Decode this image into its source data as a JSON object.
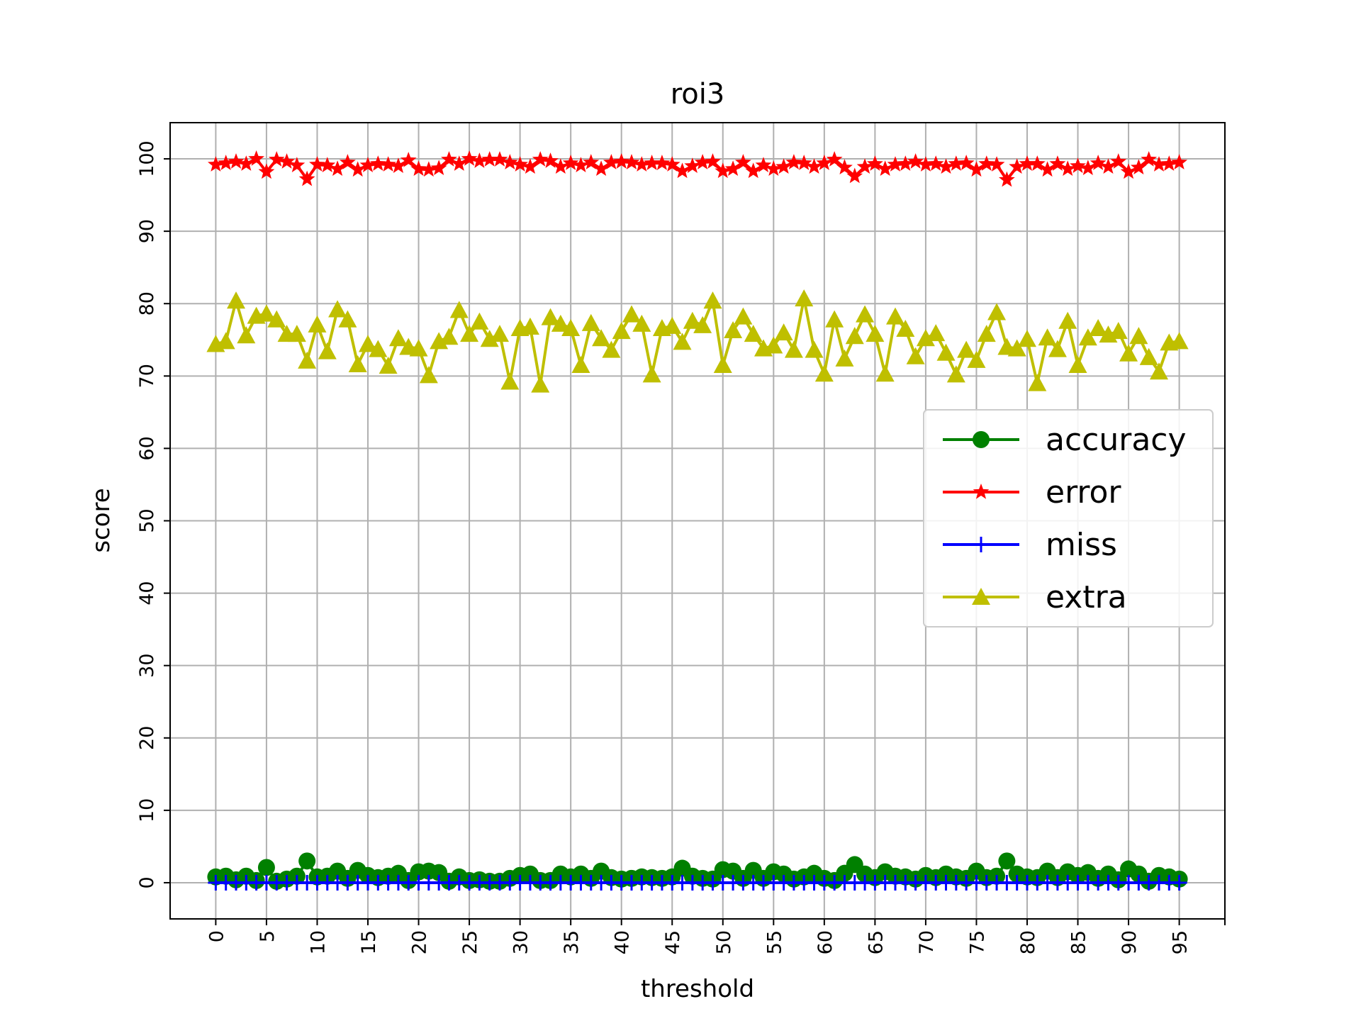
{
  "chart_data": {
    "type": "line",
    "title": "roi3",
    "xlabel": "threshold",
    "ylabel": "score",
    "xlim": [
      -4.5,
      99.5
    ],
    "ylim": [
      -5,
      105
    ],
    "xticks": [
      0,
      5,
      10,
      15,
      20,
      25,
      30,
      35,
      40,
      45,
      50,
      55,
      60,
      65,
      70,
      75,
      80,
      85,
      90,
      95
    ],
    "xtick_labels": [
      "0",
      "5",
      "10",
      "15",
      "20",
      "25",
      "30",
      "35",
      "40",
      "45",
      "50",
      "55",
      "60",
      "65",
      "70",
      "75",
      "80",
      "85",
      "90",
      "95"
    ],
    "yticks": [
      0,
      10,
      20,
      30,
      40,
      50,
      60,
      70,
      80,
      90,
      100
    ],
    "ytick_labels": [
      "0",
      "10",
      "20",
      "30",
      "40",
      "50",
      "60",
      "70",
      "80",
      "90",
      "100"
    ],
    "grid": true,
    "legend_position": "center-right",
    "x": [
      0,
      1,
      2,
      3,
      4,
      5,
      6,
      7,
      8,
      9,
      10,
      11,
      12,
      13,
      14,
      15,
      16,
      17,
      18,
      19,
      20,
      21,
      22,
      23,
      24,
      25,
      26,
      27,
      28,
      29,
      30,
      31,
      32,
      33,
      34,
      35,
      36,
      37,
      38,
      39,
      40,
      41,
      42,
      43,
      44,
      45,
      46,
      47,
      48,
      49,
      50,
      51,
      52,
      53,
      54,
      55,
      56,
      57,
      58,
      59,
      60,
      61,
      62,
      63,
      64,
      65,
      66,
      67,
      68,
      69,
      70,
      71,
      72,
      73,
      74,
      75,
      76,
      77,
      78,
      79,
      80,
      81,
      82,
      83,
      84,
      85,
      86,
      87,
      88,
      89,
      90,
      91,
      92,
      93,
      94,
      95
    ],
    "series": [
      {
        "name": "accuracy",
        "color": "#008000",
        "marker": "circle",
        "values": [
          0.8,
          0.9,
          0.4,
          0.9,
          0.3,
          2.1,
          0.2,
          0.5,
          0.9,
          3.0,
          0.8,
          0.9,
          1.6,
          0.6,
          1.7,
          1.0,
          0.7,
          0.9,
          1.3,
          0.3,
          1.5,
          1.6,
          1.4,
          0.2,
          0.8,
          0.3,
          0.4,
          0.2,
          0.2,
          0.6,
          1.0,
          1.2,
          0.3,
          0.3,
          1.2,
          0.8,
          1.2,
          0.6,
          1.6,
          0.7,
          0.5,
          0.6,
          0.8,
          0.7,
          0.6,
          0.8,
          2.0,
          0.9,
          0.6,
          0.5,
          1.8,
          1.6,
          0.6,
          1.7,
          0.6,
          1.5,
          1.2,
          0.5,
          0.8,
          1.3,
          0.6,
          0.3,
          1.3,
          2.5,
          1.2,
          0.7,
          1.5,
          0.9,
          0.8,
          0.5,
          1.0,
          0.7,
          1.2,
          0.8,
          0.6,
          1.6,
          0.7,
          0.9,
          3.0,
          1.2,
          0.8,
          0.7,
          1.6,
          0.7,
          1.5,
          1.0,
          1.4,
          0.6,
          1.2,
          0.4,
          1.9,
          1.2,
          0.2,
          1.0,
          0.8,
          0.5
        ]
      },
      {
        "name": "error",
        "color": "#ff0000",
        "marker": "star",
        "values": [
          99.2,
          99.4,
          99.6,
          99.3,
          100.0,
          98.2,
          99.9,
          99.6,
          99.1,
          97.2,
          99.2,
          99.1,
          98.6,
          99.5,
          98.5,
          99.1,
          99.3,
          99.2,
          99.0,
          99.8,
          98.6,
          98.5,
          98.7,
          99.9,
          99.3,
          100.0,
          99.7,
          99.9,
          99.9,
          99.5,
          99.2,
          98.9,
          99.9,
          99.7,
          98.9,
          99.4,
          99.1,
          99.5,
          98.6,
          99.5,
          99.6,
          99.5,
          99.2,
          99.4,
          99.4,
          99.2,
          98.3,
          99.0,
          99.5,
          99.6,
          98.3,
          98.6,
          99.5,
          98.3,
          99.1,
          98.6,
          98.9,
          99.5,
          99.4,
          98.9,
          99.4,
          99.9,
          98.8,
          97.6,
          98.9,
          99.3,
          98.6,
          99.2,
          99.3,
          99.6,
          99.2,
          99.3,
          98.9,
          99.3,
          99.4,
          98.5,
          99.3,
          99.2,
          97.1,
          98.9,
          99.3,
          99.3,
          98.5,
          99.3,
          98.6,
          99.0,
          98.7,
          99.4,
          98.9,
          99.6,
          98.2,
          98.8,
          99.9,
          99.2,
          99.3,
          99.5
        ]
      },
      {
        "name": "miss",
        "color": "#0000ff",
        "marker": "plus",
        "values": [
          0,
          0,
          0,
          0,
          0,
          0,
          0,
          0,
          0,
          0,
          0,
          0,
          0,
          0,
          0,
          0,
          0,
          0,
          0,
          0,
          0,
          0,
          0,
          0,
          0,
          0,
          0,
          0,
          0,
          0,
          0,
          0,
          0,
          0,
          0,
          0,
          0,
          0,
          0,
          0,
          0,
          0,
          0,
          0,
          0,
          0,
          0,
          0,
          0,
          0,
          0,
          0,
          0,
          0,
          0,
          0,
          0,
          0,
          0,
          0,
          0,
          0,
          0,
          0,
          0,
          0,
          0,
          0,
          0,
          0,
          0,
          0,
          0,
          0,
          0,
          0,
          0,
          0,
          0,
          0,
          0,
          0,
          0,
          0,
          0,
          0,
          0,
          0,
          0,
          0,
          0,
          0,
          0,
          0,
          0,
          0
        ]
      },
      {
        "name": "extra",
        "color": "#bfbf00",
        "marker": "triangle",
        "values": [
          74.4,
          74.8,
          80.4,
          75.6,
          78.3,
          78.6,
          77.8,
          75.8,
          75.8,
          72.1,
          77.1,
          73.4,
          79.2,
          77.8,
          71.6,
          74.4,
          73.7,
          71.4,
          75.2,
          74.0,
          73.8,
          70.1,
          74.8,
          75.4,
          79.1,
          75.8,
          77.5,
          75.1,
          75.8,
          69.2,
          76.6,
          76.8,
          68.8,
          78.1,
          77.2,
          76.6,
          71.5,
          77.3,
          75.2,
          73.6,
          76.2,
          78.5,
          77.2,
          70.2,
          76.6,
          76.9,
          74.7,
          77.6,
          77.0,
          80.4,
          71.5,
          76.3,
          78.2,
          75.8,
          73.8,
          74.2,
          76.0,
          73.6,
          80.7,
          73.6,
          70.3,
          77.8,
          72.4,
          75.5,
          78.5,
          75.8,
          70.3,
          78.2,
          76.5,
          72.7,
          75.2,
          75.9,
          73.2,
          70.2,
          73.6,
          72.2,
          75.8,
          78.8,
          74.0,
          73.8,
          75.1,
          69.0,
          75.3,
          73.7,
          77.6,
          71.5,
          75.3,
          76.6,
          75.7,
          76.2,
          73.1,
          75.5,
          72.6,
          70.6,
          74.6,
          74.8
        ]
      }
    ]
  }
}
